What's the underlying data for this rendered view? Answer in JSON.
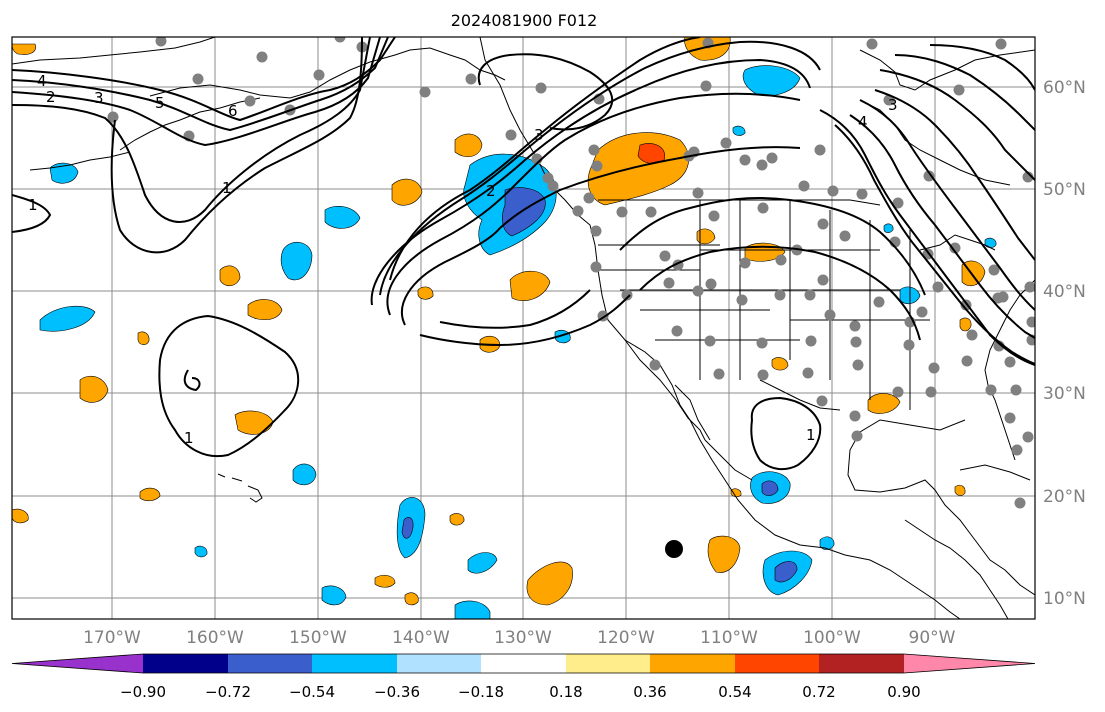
{
  "title": "2024081900 F012",
  "map": {
    "longitude_ticks": [
      "170°W",
      "160°W",
      "150°W",
      "140°W",
      "130°W",
      "120°W",
      "110°W",
      "100°W",
      "90°W"
    ],
    "latitude_ticks": [
      "60°N",
      "50°N",
      "40°N",
      "30°N",
      "20°N",
      "10°N"
    ],
    "contour_labels": [
      "4",
      "2",
      "3",
      "5",
      "6",
      "1",
      "1",
      "1",
      "3",
      "2",
      "3",
      "4",
      "1"
    ],
    "colors": {
      "contour": "#000000",
      "station": "#808080",
      "gridline": "#808080",
      "land_outline": "#000000"
    }
  },
  "colorbar": {
    "labels": [
      "−0.90",
      "−0.72",
      "−0.54",
      "−0.36",
      "−0.18",
      "0.18",
      "0.36",
      "0.54",
      "0.72",
      "0.90"
    ],
    "colors": [
      "#9932CC",
      "#00008B",
      "#3A5FCD",
      "#00BFFF",
      "#B0E2FF",
      "#FFFFFF",
      "#FFEC8B",
      "#FFA500",
      "#FF4500",
      "#B22222",
      "#FF88AA"
    ]
  }
}
